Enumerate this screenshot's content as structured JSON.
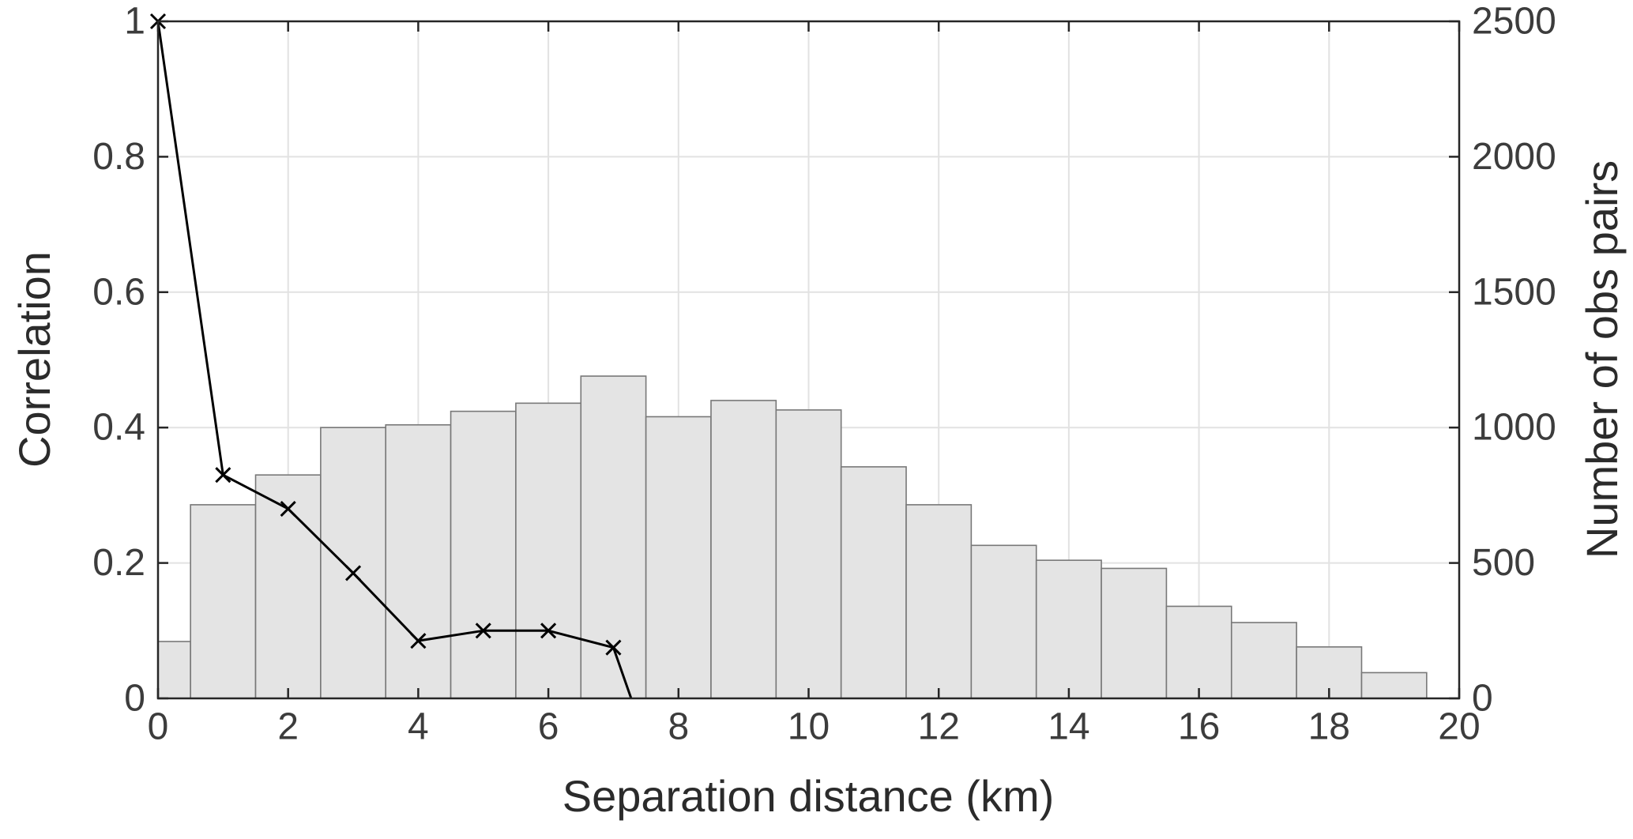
{
  "chart_data": {
    "type": "bar",
    "title": "",
    "xlabel": "Separation distance (km)",
    "ylabel_left": "Correlation",
    "ylabel_right": "Number of obs pairs",
    "xlim": [
      0,
      20
    ],
    "ylim_left": [
      0,
      1
    ],
    "ylim_right": [
      0,
      2500
    ],
    "x_ticks": [
      0,
      2,
      4,
      6,
      8,
      10,
      12,
      14,
      16,
      18,
      20
    ],
    "y_ticks_left": [
      0,
      0.2,
      0.4,
      0.6,
      0.8,
      1
    ],
    "y_ticks_right": [
      0,
      500,
      1000,
      1500,
      2000,
      2500
    ],
    "grid": true,
    "legend": "none",
    "series": [
      {
        "name": "Number of obs pairs",
        "type": "histogram",
        "axis": "right",
        "bin_edges": [
          0,
          0.5,
          1.5,
          2.5,
          3.5,
          4.5,
          5.5,
          6.5,
          7.5,
          8.5,
          9.5,
          10.5,
          11.5,
          12.5,
          13.5,
          14.5,
          15.5,
          16.5,
          17.5,
          18.5,
          19.5
        ],
        "counts": [
          210,
          715,
          825,
          1000,
          1010,
          1060,
          1090,
          1190,
          1040,
          1100,
          1065,
          855,
          715,
          565,
          510,
          480,
          340,
          280,
          190,
          95
        ]
      },
      {
        "name": "Correlation",
        "type": "line",
        "axis": "left",
        "marker": "x",
        "x": [
          0,
          1,
          2,
          3,
          4,
          5,
          6,
          7,
          8
        ],
        "y": [
          1.0,
          0.33,
          0.28,
          0.185,
          0.085,
          0.1,
          0.1,
          0.075,
          -0.2
        ]
      }
    ],
    "colors": {
      "bar_fill": "#e4e4e4",
      "bar_edge": "#787878",
      "line": "#000000",
      "grid": "#e2e2e2",
      "axis": "#262626",
      "tick_label": "#3c3c3c",
      "axis_label": "#2b2b2b",
      "background": "#ffffff"
    }
  }
}
